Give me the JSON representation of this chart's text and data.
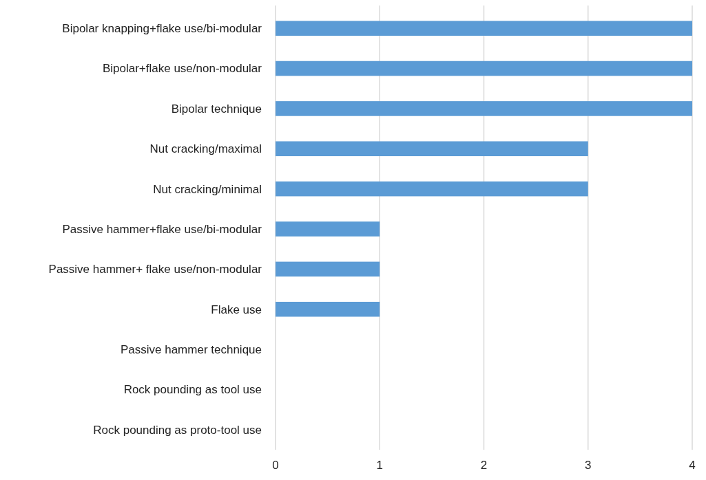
{
  "chart_data": {
    "type": "bar",
    "orientation": "horizontal",
    "categories": [
      "Bipolar knapping+flake use/bi-modular",
      "Bipolar+flake use/non-modular",
      "Bipolar technique",
      "Nut cracking/maximal",
      "Nut cracking/minimal",
      "Passive hammer+flake use/bi-modular",
      "Passive hammer+ flake use/non-modular",
      "Flake use",
      "Passive hammer technique",
      "Rock pounding as tool use",
      "Rock pounding as proto-tool use"
    ],
    "values": [
      4,
      4,
      4,
      3,
      3,
      1,
      1,
      1,
      0,
      0,
      0
    ],
    "color": "#5b9bd5",
    "xlim": [
      0,
      4
    ],
    "xticks": [
      0,
      1,
      2,
      3,
      4
    ],
    "grid": "x"
  }
}
